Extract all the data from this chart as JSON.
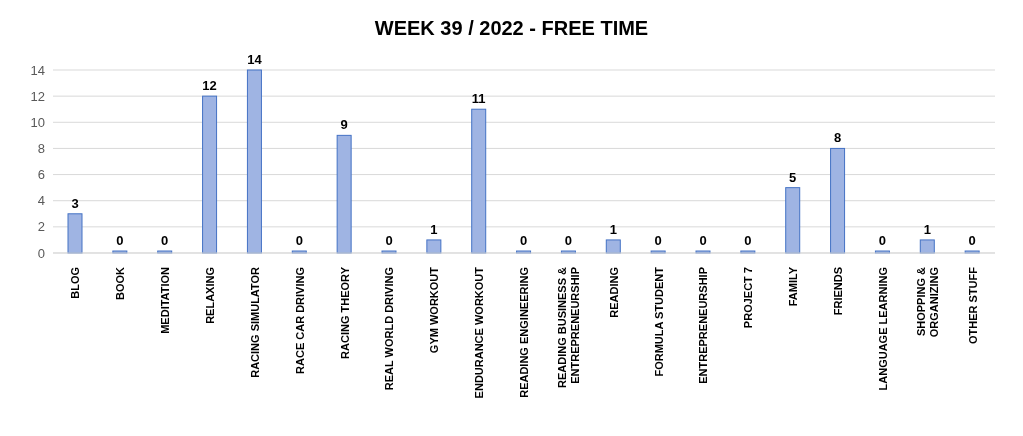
{
  "chart_data": {
    "type": "bar",
    "title": "WEEK 39 / 2022 - FREE TIME",
    "categories": [
      "BLOG",
      "BOOK",
      "MEDITATION",
      "RELAXING",
      "RACING SIMULATOR",
      "RACE CAR DRIVING",
      "RACING THEORY",
      "REAL WORLD DRIVING",
      "GYM WORKOUT",
      "ENDURANCE WORKOUT",
      "READING ENGINEERING",
      "READING BUSINESS & ENTREPRENEURSHIP",
      "READING",
      "FORMULA STUDENT",
      "ENTREPRENEURSHIP",
      "PROJECT 7",
      "FAMILY",
      "FRIENDS",
      "LANGUAGE LEARNING",
      "SHOPPING & ORGANIZING",
      "OTHER STUFF"
    ],
    "values": [
      3,
      0,
      0,
      12,
      14,
      0,
      9,
      0,
      1,
      11,
      0,
      0,
      1,
      0,
      0,
      0,
      5,
      8,
      0,
      1,
      0
    ],
    "color": "#9fb4e3",
    "ylim": [
      0,
      14
    ],
    "yticks": [
      0,
      2,
      4,
      6,
      8,
      10,
      12,
      14
    ],
    "grid": "y",
    "data_labels": true,
    "legend": false
  }
}
